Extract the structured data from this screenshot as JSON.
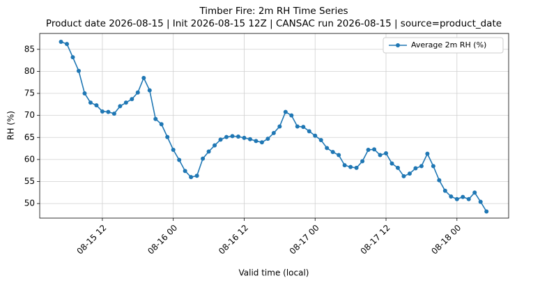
{
  "chart_data": {
    "type": "line",
    "title": "Timber Fire: 2m RH Time Series",
    "subtitle": "Product date 2026-08-15 | Init 2026-08-15 12Z | CANSAC run 2026-08-15 | source=product_date",
    "x_label": "Valid time (local)",
    "y_label": "RH (%)",
    "x": [
      "08-15 05",
      "08-15 06",
      "08-15 07",
      "08-15 08",
      "08-15 09",
      "08-15 10",
      "08-15 11",
      "08-15 12",
      "08-15 13",
      "08-15 14",
      "08-15 15",
      "08-15 16",
      "08-15 17",
      "08-15 18",
      "08-15 19",
      "08-15 20",
      "08-15 21",
      "08-15 22",
      "08-15 23",
      "08-16 00",
      "08-16 01",
      "08-16 02",
      "08-16 03",
      "08-16 04",
      "08-16 05",
      "08-16 06",
      "08-16 07",
      "08-16 08",
      "08-16 09",
      "08-16 10",
      "08-16 11",
      "08-16 12",
      "08-16 13",
      "08-16 14",
      "08-16 15",
      "08-16 16",
      "08-16 17",
      "08-16 18",
      "08-16 19",
      "08-16 20",
      "08-16 21",
      "08-16 22",
      "08-16 23",
      "08-17 00",
      "08-17 01",
      "08-17 02",
      "08-17 03",
      "08-17 04",
      "08-17 05",
      "08-17 06",
      "08-17 07",
      "08-17 08",
      "08-17 09",
      "08-17 10",
      "08-17 11",
      "08-17 12",
      "08-17 13",
      "08-17 14",
      "08-17 15",
      "08-17 16",
      "08-17 17",
      "08-17 18",
      "08-17 19",
      "08-17 20",
      "08-17 21",
      "08-17 22",
      "08-17 23",
      "08-18 00",
      "08-18 01",
      "08-18 02",
      "08-18 03",
      "08-18 04",
      "08-18 05"
    ],
    "series": [
      {
        "name": "Average 2m RH (%)",
        "color": "#1f77b4",
        "values": [
          86.7,
          86.2,
          83.2,
          80.1,
          75.0,
          72.9,
          72.3,
          70.9,
          70.8,
          70.4,
          72.1,
          72.9,
          73.7,
          75.2,
          78.5,
          75.7,
          69.2,
          68.0,
          65.1,
          62.2,
          59.9,
          57.4,
          56.0,
          56.3,
          60.2,
          61.8,
          63.2,
          64.5,
          65.1,
          65.3,
          65.2,
          64.9,
          64.6,
          64.2,
          63.9,
          64.7,
          66.0,
          67.5,
          70.8,
          70.0,
          67.5,
          67.4,
          66.4,
          65.4,
          64.4,
          62.6,
          61.7,
          61.0,
          58.7,
          58.3,
          58.1,
          59.6,
          62.2,
          62.3,
          61.0,
          61.4,
          59.1,
          58.1,
          56.2,
          56.8,
          58.0,
          58.5,
          61.3,
          58.5,
          55.3,
          52.9,
          51.6,
          51.0,
          51.5,
          51.0,
          52.5,
          50.4,
          48.2
        ]
      }
    ],
    "xlim": [
      "08-15 01:24",
      "08-18 08:45"
    ],
    "xticks": [
      "08-15 12",
      "08-16 00",
      "08-16 12",
      "08-17 00",
      "08-17 12",
      "08-18 00"
    ],
    "ylim": [
      46.7,
      88.6
    ],
    "yticks": [
      50,
      55,
      60,
      65,
      70,
      75,
      80,
      85
    ],
    "grid": true,
    "legend": "upper right"
  }
}
